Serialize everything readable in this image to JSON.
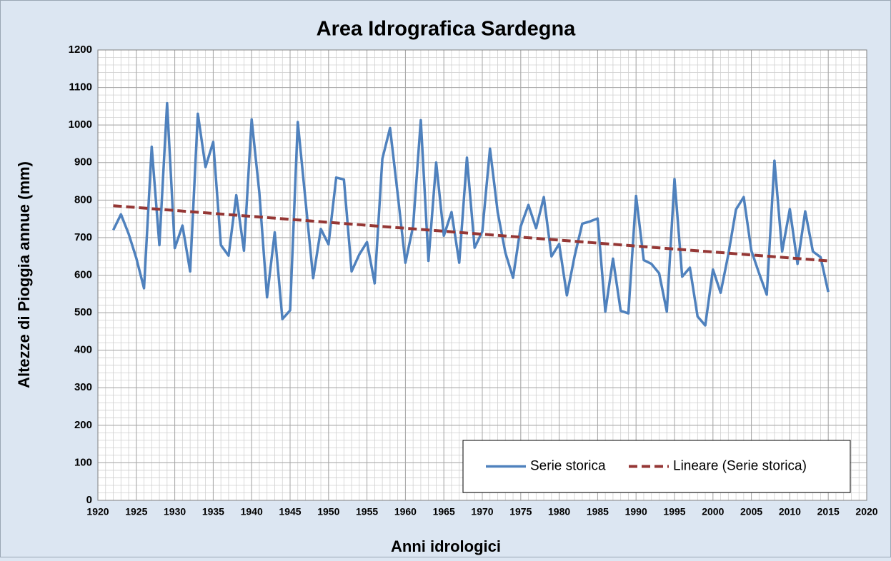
{
  "chart_data": {
    "type": "line",
    "title": "Area Idrografica Sardegna",
    "xlabel": "Anni idrologici",
    "ylabel": "Altezze di Pioggia annue (mm)",
    "x": [
      1922,
      1923,
      1924,
      1925,
      1926,
      1927,
      1928,
      1929,
      1930,
      1931,
      1932,
      1933,
      1934,
      1935,
      1936,
      1937,
      1938,
      1939,
      1940,
      1941,
      1942,
      1943,
      1944,
      1945,
      1946,
      1947,
      1948,
      1949,
      1950,
      1951,
      1952,
      1953,
      1954,
      1955,
      1956,
      1957,
      1958,
      1959,
      1960,
      1961,
      1962,
      1963,
      1964,
      1965,
      1966,
      1967,
      1968,
      1969,
      1970,
      1971,
      1972,
      1973,
      1974,
      1975,
      1976,
      1977,
      1978,
      1979,
      1980,
      1981,
      1982,
      1983,
      1984,
      1985,
      1986,
      1987,
      1988,
      1989,
      1990,
      1991,
      1992,
      1993,
      1994,
      1995,
      1996,
      1997,
      1998,
      1999,
      2000,
      2001,
      2002,
      2003,
      2004,
      2005,
      2006,
      2007,
      2008,
      2009,
      2010,
      2011,
      2012,
      2013,
      2014,
      2015
    ],
    "series": [
      {
        "name": "Serie storica",
        "color": "#4f81bd",
        "values": [
          720,
          762,
          710,
          645,
          565,
          942,
          680,
          1058,
          672,
          732,
          610,
          1030,
          888,
          955,
          680,
          652,
          813,
          665,
          1015,
          820,
          541,
          714,
          483,
          506,
          1008,
          800,
          592,
          723,
          682,
          860,
          855,
          610,
          655,
          688,
          578,
          910,
          992,
          815,
          633,
          730,
          1013,
          638,
          900,
          705,
          768,
          633,
          913,
          673,
          716,
          937,
          768,
          660,
          593,
          730,
          787,
          725,
          808,
          650,
          683,
          546,
          650,
          737,
          743,
          751,
          503,
          644,
          505,
          498,
          811,
          640,
          630,
          605,
          503,
          856,
          596,
          620,
          490,
          466,
          615,
          553,
          655,
          775,
          808,
          665,
          605,
          548,
          905,
          663,
          776,
          630,
          770,
          663,
          648,
          555
        ]
      },
      {
        "name": "Lineare (Serie storica)",
        "color": "#953735",
        "dashed": true,
        "x": [
          1922,
          2015
        ],
        "values": [
          785,
          638
        ]
      }
    ],
    "xlim": [
      1920,
      2020
    ],
    "xticks": [
      1920,
      1925,
      1930,
      1935,
      1940,
      1945,
      1950,
      1955,
      1960,
      1965,
      1970,
      1975,
      1980,
      1985,
      1990,
      1995,
      2000,
      2005,
      2010,
      2015,
      2020
    ],
    "ylim": [
      0,
      1200
    ],
    "yticks": [
      0,
      100,
      200,
      300,
      400,
      500,
      600,
      700,
      800,
      900,
      1000,
      1100,
      1200
    ],
    "grid": true,
    "legend": "lower right"
  }
}
